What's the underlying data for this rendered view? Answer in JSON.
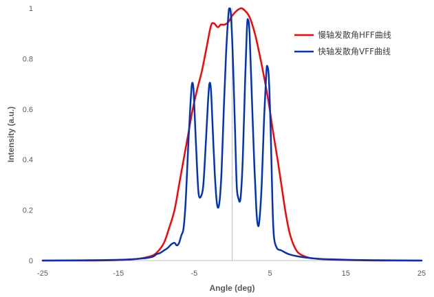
{
  "chart_data": {
    "type": "line",
    "title": "",
    "xlabel": "Angle (deg)",
    "ylabel": "Intensity (a.u.)",
    "xlim": [
      -25,
      25
    ],
    "ylim": [
      0,
      1
    ],
    "xticks": [
      -25,
      -15,
      -5,
      5,
      15,
      25
    ],
    "xtick_labels": [
      "-25",
      "-15",
      "-5",
      "5",
      "15",
      "25"
    ],
    "yticks": [
      0,
      0.2,
      0.4,
      0.6,
      0.8,
      1
    ],
    "ytick_labels": [
      "0",
      "0.2",
      "0.4",
      "0.6",
      "0.8",
      "1"
    ],
    "grid": false,
    "reference_line_x": 0,
    "legend_position": "top-right",
    "series": [
      {
        "name": "慢轴发散角HFF曲线",
        "color": "#ff0000",
        "points": [
          [
            -25,
            0
          ],
          [
            -20,
            0
          ],
          [
            -16,
            0.001
          ],
          [
            -13,
            0.005
          ],
          [
            -11,
            0.015
          ],
          [
            -10,
            0.03
          ],
          [
            -9,
            0.07
          ],
          [
            -8.3,
            0.13
          ],
          [
            -7.6,
            0.2
          ],
          [
            -7,
            0.3
          ],
          [
            -6.4,
            0.4
          ],
          [
            -5.8,
            0.5
          ],
          [
            -5.2,
            0.6
          ],
          [
            -4.6,
            0.68
          ],
          [
            -4,
            0.75
          ],
          [
            -3.4,
            0.84
          ],
          [
            -2.8,
            0.93
          ],
          [
            -2.4,
            0.94
          ],
          [
            -1.9,
            0.925
          ],
          [
            -1.5,
            0.935
          ],
          [
            -1,
            0.935
          ],
          [
            -0.5,
            0.945
          ],
          [
            0,
            0.97
          ],
          [
            0.6,
            0.99
          ],
          [
            1.2,
            1.0
          ],
          [
            1.7,
            0.99
          ],
          [
            2.3,
            0.965
          ],
          [
            3,
            0.9
          ],
          [
            3.6,
            0.82
          ],
          [
            4.2,
            0.73
          ],
          [
            4.8,
            0.63
          ],
          [
            5.4,
            0.51
          ],
          [
            6,
            0.4
          ],
          [
            6.5,
            0.3
          ],
          [
            7,
            0.2
          ],
          [
            7.5,
            0.12
          ],
          [
            8,
            0.07
          ],
          [
            8.6,
            0.035
          ],
          [
            9.3,
            0.02
          ],
          [
            10.3,
            0.01
          ],
          [
            12,
            0.005
          ],
          [
            15,
            0.002
          ],
          [
            20,
            0
          ],
          [
            25,
            0
          ]
        ]
      },
      {
        "name": "快轴发散角VFF曲线",
        "color": "#0033bb",
        "points": [
          [
            -25,
            0
          ],
          [
            -20,
            0.001
          ],
          [
            -15,
            0.003
          ],
          [
            -12,
            0.008
          ],
          [
            -10.5,
            0.015
          ],
          [
            -10,
            0.025
          ],
          [
            -9.5,
            0.03
          ],
          [
            -9,
            0.04
          ],
          [
            -8.5,
            0.05
          ],
          [
            -8,
            0.065
          ],
          [
            -7.6,
            0.07
          ],
          [
            -7.3,
            0.06
          ],
          [
            -7,
            0.07
          ],
          [
            -6.7,
            0.1
          ],
          [
            -6.4,
            0.13
          ],
          [
            -6.1,
            0.25
          ],
          [
            -5.8,
            0.45
          ],
          [
            -5.5,
            0.62
          ],
          [
            -5.3,
            0.7
          ],
          [
            -5.1,
            0.68
          ],
          [
            -4.9,
            0.55
          ],
          [
            -4.6,
            0.35
          ],
          [
            -4.4,
            0.26
          ],
          [
            -4.1,
            0.255
          ],
          [
            -3.8,
            0.3
          ],
          [
            -3.5,
            0.45
          ],
          [
            -3.2,
            0.62
          ],
          [
            -3,
            0.7
          ],
          [
            -2.8,
            0.68
          ],
          [
            -2.6,
            0.55
          ],
          [
            -2.3,
            0.35
          ],
          [
            -2,
            0.225
          ],
          [
            -1.7,
            0.225
          ],
          [
            -1.4,
            0.35
          ],
          [
            -1.1,
            0.6
          ],
          [
            -0.8,
            0.82
          ],
          [
            -0.5,
            0.97
          ],
          [
            -0.35,
            1.0
          ],
          [
            -0.15,
            0.97
          ],
          [
            0.1,
            0.8
          ],
          [
            0.4,
            0.5
          ],
          [
            0.6,
            0.3
          ],
          [
            0.8,
            0.25
          ],
          [
            1.1,
            0.245
          ],
          [
            1.4,
            0.4
          ],
          [
            1.7,
            0.7
          ],
          [
            1.95,
            0.92
          ],
          [
            2.1,
            0.955
          ],
          [
            2.3,
            0.9
          ],
          [
            2.6,
            0.65
          ],
          [
            2.9,
            0.4
          ],
          [
            3.2,
            0.2
          ],
          [
            3.4,
            0.14
          ],
          [
            3.6,
            0.16
          ],
          [
            3.9,
            0.3
          ],
          [
            4.2,
            0.55
          ],
          [
            4.5,
            0.74
          ],
          [
            4.65,
            0.77
          ],
          [
            4.85,
            0.72
          ],
          [
            5.1,
            0.5
          ],
          [
            5.3,
            0.25
          ],
          [
            5.5,
            0.1
          ],
          [
            5.9,
            0.05
          ],
          [
            6.5,
            0.04
          ],
          [
            7.5,
            0.025
          ],
          [
            9,
            0.015
          ],
          [
            11,
            0.008
          ],
          [
            13,
            0.005
          ],
          [
            17,
            0.002
          ],
          [
            25,
            0
          ]
        ]
      }
    ]
  }
}
